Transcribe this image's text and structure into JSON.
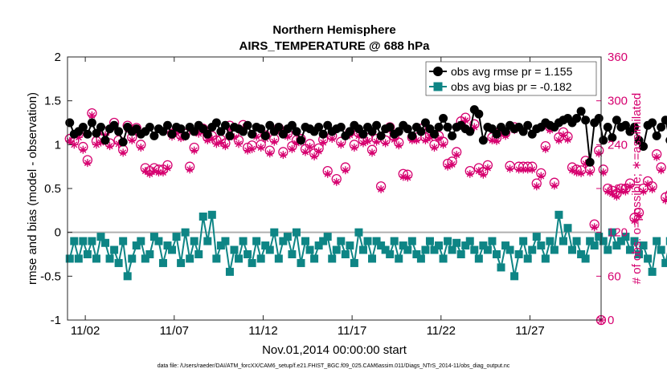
{
  "colors": {
    "rmse": "#000000",
    "bias": "#0e8585",
    "obs": "#d6006f",
    "zero_line": "#b0b0b0"
  },
  "chart_data": {
    "type": "line",
    "title": "Northern Hemisphere",
    "subtitle": "AIRS_TEMPERATURE @ 688 hPa",
    "xlabel": "Nov.01,2014 00:00:00 start",
    "ylabel": "rmse and bias (model - observation)",
    "y2label": "# of obs: o=possible; ∗=assimilated",
    "footnote": "data file: /Users/raeder/DAI/ATM_forcXX/CAM6_setup/f.e21.FHIST_BGC.f09_025.CAM6assim.011/Diags_NTrS_2014-11/obs_diag_output.nc",
    "xlim": [
      0,
      30
    ],
    "ylim": [
      -1,
      2
    ],
    "y2lim": [
      0,
      360
    ],
    "x_ticks": [
      1,
      6,
      11,
      16,
      21,
      26
    ],
    "x_tick_labels": [
      "11/02",
      "11/07",
      "11/12",
      "11/17",
      "11/22",
      "11/27"
    ],
    "y_ticks": [
      -1,
      -0.5,
      0,
      0.5,
      1,
      1.5,
      2
    ],
    "y_tick_labels": [
      "-1",
      "-0.5",
      "0",
      "0.5",
      "1",
      "1.5",
      "2"
    ],
    "y2_ticks": [
      0,
      60,
      120,
      180,
      240,
      300,
      360
    ],
    "y2_tick_labels": [
      "0",
      "60",
      "120",
      "180",
      "240",
      "300",
      "360"
    ],
    "x_step_days": 0.25,
    "x_start": 0.125,
    "series": [
      {
        "name": "obs avg rmse pr = 1.155",
        "marker": "filled-circle",
        "values": [
          1.25,
          1.12,
          1.15,
          1.2,
          1.12,
          1.25,
          1.13,
          1.2,
          1.05,
          1.18,
          1.22,
          1.15,
          1.03,
          1.2,
          1.15,
          1.18,
          1.12,
          1.15,
          1.2,
          1.1,
          1.18,
          1.15,
          1.22,
          1.12,
          1.2,
          1.18,
          1.1,
          1.2,
          1.15,
          1.22,
          1.18,
          1.12,
          1.2,
          1.25,
          1.15,
          1.22,
          1.1,
          1.2,
          1.18,
          1.15,
          1.22,
          1.12,
          1.2,
          1.18,
          1.1,
          1.22,
          1.15,
          1.2,
          1.12,
          1.18,
          1.22,
          1.15,
          1.05,
          1.2,
          1.18,
          1.15,
          1.2,
          1.12,
          1.22,
          1.15,
          1.18,
          1.2,
          1.1,
          1.15,
          1.22,
          1.18,
          1.12,
          1.2,
          1.15,
          1.22,
          1.1,
          1.18,
          1.2,
          1.12,
          1.15,
          1.22,
          1.18,
          1.1,
          1.2,
          1.15,
          1.25,
          1.18,
          1.12,
          1.2,
          1.3,
          1.2,
          1.1,
          1.2,
          1.22,
          1.18,
          1.15,
          1.4,
          1.35,
          1.05,
          1.2,
          1.18,
          1.12,
          1.2,
          1.15,
          1.22,
          1.18,
          1.2,
          1.15,
          1.22,
          1.12,
          1.18,
          1.2,
          1.25,
          1.22,
          1.2,
          1.25,
          1.28,
          1.3,
          1.25,
          1.3,
          1.38,
          1.28,
          0.8,
          1.25,
          1.3,
          1.05,
          1.2,
          1.08,
          1.28,
          1.2,
          1.22,
          1.15,
          1.2,
          1.05,
          0.98,
          1.22,
          1.25,
          1.1,
          1.2,
          1.28,
          1.05,
          1.2,
          1.15,
          1.08,
          1.0,
          1.1,
          1.3,
          1.2,
          1.05,
          1.02,
          1.12,
          1.18,
          1.12,
          1.05,
          1.22,
          1.0,
          1.05,
          1.08,
          1.02,
          1.12,
          1.1,
          1.05,
          1.22,
          1.1,
          1.08,
          1.12,
          1.05
        ],
        "color": "#000000"
      },
      {
        "name": "obs avg bias pr = -0.182",
        "marker": "filled-square",
        "values": [
          -0.3,
          -0.1,
          -0.3,
          -0.1,
          -0.25,
          -0.1,
          -0.3,
          -0.05,
          -0.12,
          -0.3,
          -0.2,
          -0.35,
          -0.1,
          -0.5,
          -0.3,
          -0.15,
          -0.1,
          -0.3,
          -0.25,
          -0.05,
          -0.1,
          -0.35,
          -0.15,
          -0.2,
          -0.05,
          -0.35,
          0.0,
          -0.3,
          -0.1,
          -0.25,
          0.18,
          -0.1,
          0.2,
          -0.3,
          -0.15,
          -0.1,
          -0.45,
          -0.2,
          -0.3,
          -0.1,
          -0.25,
          -0.35,
          -0.1,
          -0.3,
          -0.15,
          -0.2,
          0.0,
          -0.3,
          -0.1,
          -0.05,
          -0.25,
          0.0,
          -0.35,
          -0.1,
          -0.2,
          -0.3,
          -0.15,
          -0.1,
          -0.05,
          -0.3,
          -0.2,
          -0.1,
          -0.25,
          -0.15,
          -0.35,
          0.0,
          -0.2,
          -0.1,
          -0.3,
          -0.1,
          -0.15,
          -0.2,
          -0.25,
          -0.1,
          -0.3,
          -0.15,
          -0.2,
          -0.1,
          -0.25,
          -0.3,
          -0.2,
          -0.1,
          -0.2,
          -0.15,
          -0.3,
          -0.1,
          -0.2,
          -0.12,
          -0.25,
          -0.15,
          -0.1,
          -0.2,
          -0.3,
          -0.15,
          -0.2,
          -0.1,
          -0.25,
          -0.4,
          -0.15,
          -0.2,
          -0.5,
          -0.25,
          -0.1,
          -0.3,
          -0.2,
          -0.05,
          -0.15,
          -0.3,
          -0.1,
          -0.2,
          0.2,
          -0.1,
          0.05,
          -0.2,
          -0.1,
          -0.25,
          -0.3,
          -0.1,
          -0.15,
          -0.05,
          -0.1,
          -0.2,
          0.0,
          -0.15,
          -0.1,
          -0.05,
          -0.2,
          -0.1,
          -0.25,
          -0.15,
          -0.3,
          -0.45,
          -0.1,
          -0.2,
          -0.35,
          -0.1,
          -0.15,
          -0.4,
          -0.5,
          -0.2,
          -0.1,
          -0.3,
          -0.15,
          -0.1,
          -0.2,
          -0.25,
          -0.35,
          -0.15,
          -0.1,
          -0.2,
          -0.3,
          -0.25,
          -0.15,
          -0.4,
          -0.1,
          -0.3,
          -0.1,
          -0.15,
          -0.2,
          -0.2,
          -0.1,
          -0.35,
          -0.12,
          -0.05
        ],
        "color": "#0e8585"
      },
      {
        "name": "possible",
        "axis": "right",
        "marker": "open-circle",
        "values": [
          248,
          245,
          255,
          237,
          219,
          283,
          245,
          248,
          258,
          242,
          270,
          246,
          233,
          266,
          250,
          263,
          240,
          208,
          204,
          208,
          206,
          206,
          212,
          255,
          260,
          253,
          255,
          210,
          236,
          260,
          262,
          250,
          252,
          246,
          247,
          242,
          266,
          254,
          246,
          267,
          236,
          239,
          255,
          240,
          253,
          232,
          248,
          263,
          230,
          255,
          238,
          246,
          248,
          234,
          241,
          228,
          235,
          247,
          204,
          252,
          193,
          244,
          209,
          257,
          240,
          256,
          246,
          249,
          233,
          248,
          183,
          246,
          264,
          251,
          243,
          200,
          199,
          250,
          250,
          262,
          250,
          254,
          240,
          252,
          244,
          214,
          217,
          230,
          272,
          277,
          204,
          268,
          208,
          203,
          212,
          250,
          249,
          260,
          256,
          211,
          264,
          210,
          210,
          210,
          210,
          187,
          201,
          238,
          264,
          188,
          250,
          257,
          251,
          209,
          206,
          205,
          218,
          206,
          131,
          232,
          206,
          180,
          177,
          173,
          180,
          180,
          187,
          140,
          147,
          180,
          190,
          183,
          227,
          209,
          168,
          172,
          163,
          181,
          206,
          182,
          196,
          203,
          191,
          113,
          120,
          142,
          153,
          152,
          157,
          170,
          172,
          165,
          181,
          167,
          158,
          151,
          163,
          172,
          172,
          178,
          177,
          175,
          173,
          178,
          180,
          178,
          0
        ],
        "color": "#d6006f"
      },
      {
        "name": "assimilated",
        "axis": "right",
        "marker": "asterisk",
        "values": [
          245,
          240,
          250,
          233,
          215,
          280,
          240,
          243,
          253,
          238,
          265,
          241,
          229,
          262,
          246,
          258,
          236,
          204,
          200,
          204,
          202,
          202,
          208,
          251,
          256,
          249,
          251,
          206,
          232,
          255,
          257,
          246,
          248,
          241,
          243,
          238,
          261,
          250,
          241,
          263,
          232,
          234,
          251,
          236,
          248,
          228,
          244,
          259,
          226,
          251,
          234,
          242,
          244,
          230,
          237,
          224,
          231,
          243,
          200,
          248,
          189,
          240,
          205,
          253,
          236,
          252,
          242,
          245,
          229,
          244,
          179,
          242,
          260,
          247,
          239,
          196,
          195,
          246,
          246,
          258,
          246,
          250,
          236,
          248,
          240,
          210,
          213,
          226,
          268,
          273,
          200,
          264,
          204,
          199,
          208,
          246,
          245,
          256,
          252,
          207,
          260,
          206,
          206,
          206,
          206,
          183,
          197,
          234,
          260,
          184,
          246,
          253,
          247,
          205,
          202,
          201,
          214,
          202,
          127,
          228,
          202,
          176,
          173,
          169,
          176,
          176,
          183,
          136,
          143,
          176,
          186,
          179,
          223,
          205,
          164,
          168,
          159,
          177,
          202,
          178,
          192,
          199,
          187,
          109,
          116,
          138,
          149,
          148,
          153,
          166,
          168,
          161,
          177,
          163,
          154,
          147,
          159,
          168,
          168,
          174,
          173,
          171,
          169,
          174,
          176,
          174,
          0
        ],
        "color": "#d6006f"
      }
    ],
    "legend": {
      "location": "top-right",
      "entries": [
        "obs avg rmse pr = 1.155",
        "obs avg bias pr = -0.182"
      ]
    }
  }
}
